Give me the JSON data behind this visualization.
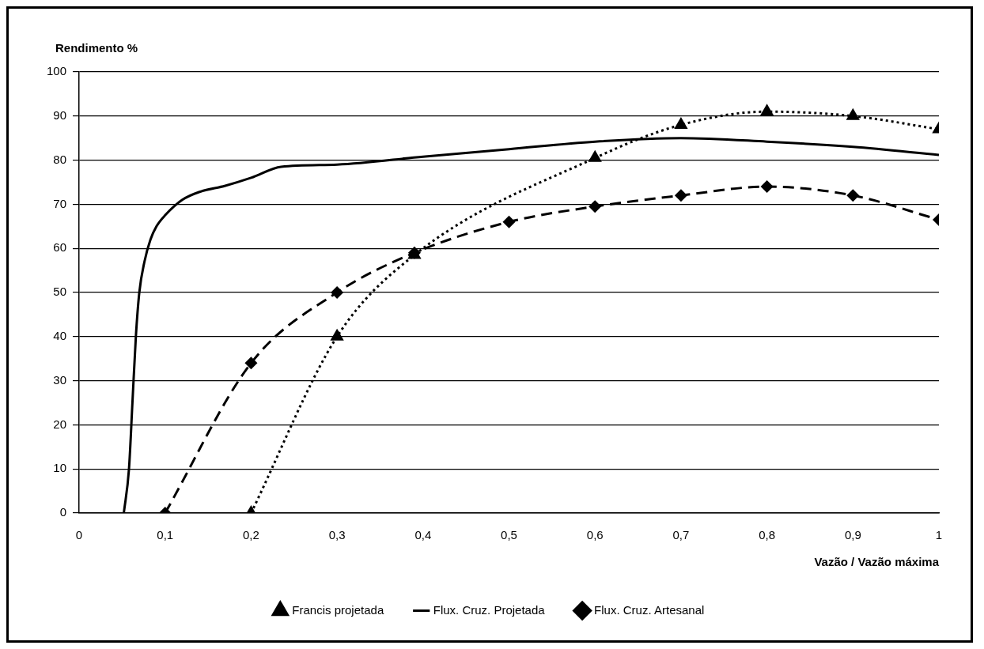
{
  "chart_data": {
    "type": "line",
    "ylabel": "Rendimento %",
    "xlabel": "Vazão / Vazão máxima",
    "xlim": [
      0,
      1
    ],
    "xticks": [
      0,
      {
        "value": 0.1,
        "label": "0,1"
      },
      {
        "value": 0.2,
        "label": "0,2"
      },
      {
        "value": 0.3,
        "label": "0,3"
      },
      {
        "value": 0.4,
        "label": "0,4"
      },
      {
        "value": 0.5,
        "label": "0,5"
      },
      {
        "value": 0.6,
        "label": "0,6"
      },
      {
        "value": 0.7,
        "label": "0,7"
      },
      {
        "value": 0.8,
        "label": "0,8"
      },
      {
        "value": 0.9,
        "label": "0,9"
      },
      1
    ],
    "ylim": [
      0,
      100
    ],
    "yticks": [
      0,
      10,
      20,
      30,
      40,
      50,
      60,
      70,
      80,
      90,
      100
    ],
    "grid": "y",
    "legend": "bottom",
    "series": [
      {
        "name": "Francis projetada",
        "color": "#000000",
        "marker": "triangle",
        "line_style": "dotted",
        "x": [
          0.2,
          0.3,
          0.39,
          0.6,
          0.7,
          0.8,
          0.9,
          1
        ],
        "values": [
          0,
          40,
          58.5,
          80.5,
          88,
          91,
          90,
          87
        ]
      },
      {
        "name": "Flux. Cruz. Projetada",
        "color": "#000000",
        "marker": "none",
        "line_style": "solid",
        "x": [
          0.052,
          0.058,
          0.062,
          0.066,
          0.07,
          0.076,
          0.083,
          0.09,
          0.1,
          0.12,
          0.14,
          0.17,
          0.2,
          0.235,
          0.3,
          0.4,
          0.5,
          0.6,
          0.7,
          0.8,
          0.9,
          1
        ],
        "values": [
          0,
          10,
          25,
          40,
          50,
          57,
          62,
          65,
          67.5,
          71,
          72.8,
          74.2,
          76,
          78.5,
          79,
          80.8,
          82.5,
          84.2,
          85,
          84.2,
          83,
          81.2
        ]
      },
      {
        "name": "Flux. Cruz. Artesanal",
        "color": "#000000",
        "marker": "diamond",
        "line_style": "dashed",
        "x": [
          0.1,
          0.2,
          0.3,
          0.39,
          0.5,
          0.6,
          0.7,
          0.8,
          0.9,
          1
        ],
        "values": [
          0,
          34,
          50,
          59,
          66,
          69.5,
          72,
          74,
          72,
          66.5
        ]
      }
    ]
  }
}
